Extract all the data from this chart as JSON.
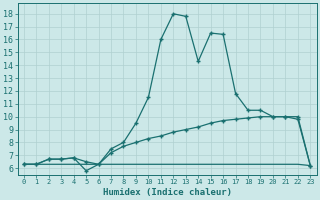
{
  "xlabel": "Humidex (Indice chaleur)",
  "bg_color": "#cce8e8",
  "grid_color": "#b0d0d0",
  "line_color": "#1a7070",
  "xlim": [
    -0.5,
    23.5
  ],
  "ylim": [
    5.5,
    18.8
  ],
  "xticks": [
    0,
    1,
    2,
    3,
    4,
    5,
    6,
    7,
    8,
    9,
    10,
    11,
    12,
    13,
    14,
    15,
    16,
    17,
    18,
    19,
    20,
    21,
    22,
    23
  ],
  "yticks": [
    6,
    7,
    8,
    9,
    10,
    11,
    12,
    13,
    14,
    15,
    16,
    17,
    18
  ],
  "line_flat_x": [
    0,
    1,
    2,
    3,
    4,
    5,
    6,
    7,
    8,
    9,
    10,
    11,
    12,
    13,
    14,
    15,
    16,
    17,
    18,
    19,
    20,
    21,
    22,
    23
  ],
  "line_flat_y": [
    6.3,
    6.3,
    6.3,
    6.3,
    6.3,
    6.3,
    6.3,
    6.3,
    6.3,
    6.3,
    6.3,
    6.3,
    6.3,
    6.3,
    6.3,
    6.3,
    6.3,
    6.3,
    6.3,
    6.3,
    6.3,
    6.3,
    6.3,
    6.2
  ],
  "line_diag_x": [
    0,
    1,
    2,
    3,
    4,
    5,
    6,
    7,
    8,
    9,
    10,
    11,
    12,
    13,
    14,
    15,
    16,
    17,
    18,
    19,
    20,
    21,
    22,
    23
  ],
  "line_diag_y": [
    6.3,
    6.3,
    6.7,
    6.7,
    6.8,
    6.5,
    6.3,
    7.2,
    7.7,
    8.0,
    8.3,
    8.5,
    8.8,
    9.0,
    9.2,
    9.5,
    9.7,
    9.8,
    9.9,
    10.0,
    10.0,
    10.0,
    10.0,
    6.2
  ],
  "line_peak_x": [
    0,
    1,
    2,
    3,
    4,
    5,
    6,
    7,
    8,
    9,
    10,
    11,
    12,
    13,
    14,
    15,
    16,
    17,
    18,
    19,
    20,
    21,
    22,
    23
  ],
  "line_peak_y": [
    6.3,
    6.3,
    6.7,
    6.7,
    6.8,
    5.8,
    6.3,
    7.5,
    8.0,
    9.5,
    11.5,
    16.0,
    18.0,
    17.8,
    14.3,
    16.5,
    16.4,
    11.8,
    10.5,
    10.5,
    10.0,
    10.0,
    9.8,
    6.2
  ]
}
